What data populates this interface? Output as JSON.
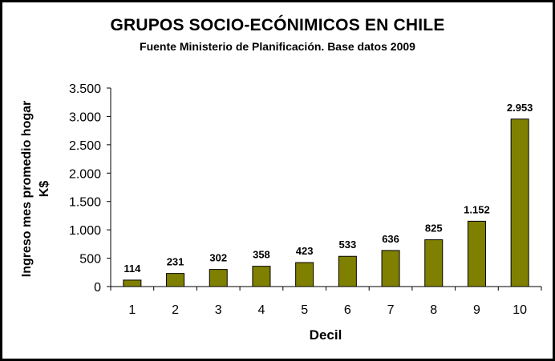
{
  "chart_data": {
    "type": "bar",
    "title": "GRUPOS SOCIO-ECÓNIMICOS EN CHILE",
    "subtitle": "Fuente Ministerio de Planificación. Base datos 2009",
    "xlabel": "Decil",
    "ylabel_line1": "Ingreso mes promedio hogar",
    "ylabel_line2": "K$",
    "categories": [
      "1",
      "2",
      "3",
      "4",
      "5",
      "6",
      "7",
      "8",
      "9",
      "10"
    ],
    "values": [
      114,
      231,
      302,
      358,
      423,
      533,
      636,
      825,
      1152,
      2953
    ],
    "value_labels": [
      "114",
      "231",
      "302",
      "358",
      "423",
      "533",
      "636",
      "825",
      "1.152",
      "2.953"
    ],
    "ylim": [
      0,
      3500
    ],
    "yticks": [
      0,
      500,
      1000,
      1500,
      2000,
      2500,
      3000,
      3500
    ],
    "ytick_labels": [
      "0",
      "500",
      "1.000",
      "1.500",
      "2.000",
      "2.500",
      "3.000",
      "3.500"
    ],
    "bar_color": "#808000",
    "grid": false,
    "legend": "none"
  }
}
